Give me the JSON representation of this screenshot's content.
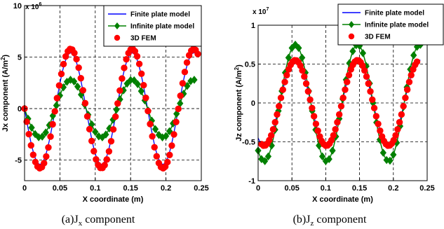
{
  "chart_data": [
    {
      "type": "line",
      "caption_prefix": "(a)J",
      "caption_sub": "x",
      "caption_suffix": " component",
      "ylabel_prefix": "Jx component (A/m",
      "ylabel_sup": "2",
      "ylabel_suffix": ")",
      "xlabel": "X coordinate (m)",
      "multiplier_base": "x 10",
      "multiplier_exp": "6",
      "xlim": [
        0,
        0.25
      ],
      "ylim": [
        -7,
        10
      ],
      "xticks": [
        0,
        0.05,
        0.1,
        0.15,
        0.2,
        0.25
      ],
      "xtick_labels": [
        "0",
        "0.05",
        "0.1",
        "0.15",
        "0.2",
        "0.25"
      ],
      "yticks": [
        -5,
        0,
        5,
        10
      ],
      "ytick_labels": [
        "-5",
        "0",
        "5",
        "10"
      ],
      "grid": true,
      "legend_position": "top-right",
      "series": [
        {
          "name": "Finite plate model",
          "style": "line",
          "color": "#0000ff",
          "model": {
            "offset": 0.0,
            "amp": 5.4,
            "period": 0.087,
            "phase": 0.0,
            "endpoint_amp": 5.4
          },
          "x_range": [
            0,
            0.24
          ]
        },
        {
          "name": "Infinite plate model",
          "style": "line-diamond",
          "color": "#008000",
          "model": {
            "offset": 0.0,
            "amp": 2.8,
            "period": 0.087,
            "phase": 0.0
          },
          "x_range": [
            0,
            0.24
          ]
        },
        {
          "name": "3D FEM",
          "style": "circle",
          "color": "#ff0000",
          "model": {
            "offset": 0.0,
            "amp": 5.8,
            "period": 0.087,
            "phase": 0.0
          },
          "x_range": [
            0,
            0.245
          ]
        }
      ]
    },
    {
      "type": "line",
      "caption_prefix": "(b)J",
      "caption_sub": "z",
      "caption_suffix": " component",
      "ylabel_prefix": "Jz component (A/m",
      "ylabel_sup": "2",
      "ylabel_suffix": ")",
      "xlabel": "X coordinate (m)",
      "multiplier_base": "x 10",
      "multiplier_exp": "7",
      "xlim": [
        0,
        0.25
      ],
      "ylim": [
        -1,
        1
      ],
      "xticks": [
        0,
        0.05,
        0.1,
        0.15,
        0.2,
        0.25
      ],
      "xtick_labels": [
        "0",
        "0.05",
        "0.1",
        "0.15",
        "0.2",
        "0.25"
      ],
      "yticks": [
        -1,
        -0.5,
        0,
        0.5,
        1
      ],
      "ytick_labels": [
        "-1",
        "-0.5",
        "0",
        "0.5",
        "1"
      ],
      "grid": true,
      "legend_position": "top-right",
      "series": [
        {
          "name": "Finite plate model",
          "style": "line",
          "color": "#0000ff",
          "model": {
            "amp": 0.55,
            "period": 0.092,
            "peak_x": 0.055
          },
          "x_range": [
            0,
            0.24
          ]
        },
        {
          "name": "Infinite plate model",
          "style": "line-diamond",
          "color": "#008000",
          "model": {
            "amp": 0.75,
            "period": 0.092,
            "peak_x": 0.055
          },
          "x_range": [
            0,
            0.24
          ]
        },
        {
          "name": "3D FEM",
          "style": "circle",
          "color": "#ff0000",
          "model": {
            "amp": 0.55,
            "period": 0.092,
            "peak_x": 0.055
          },
          "x_range": [
            0.005,
            0.235
          ]
        }
      ]
    }
  ]
}
